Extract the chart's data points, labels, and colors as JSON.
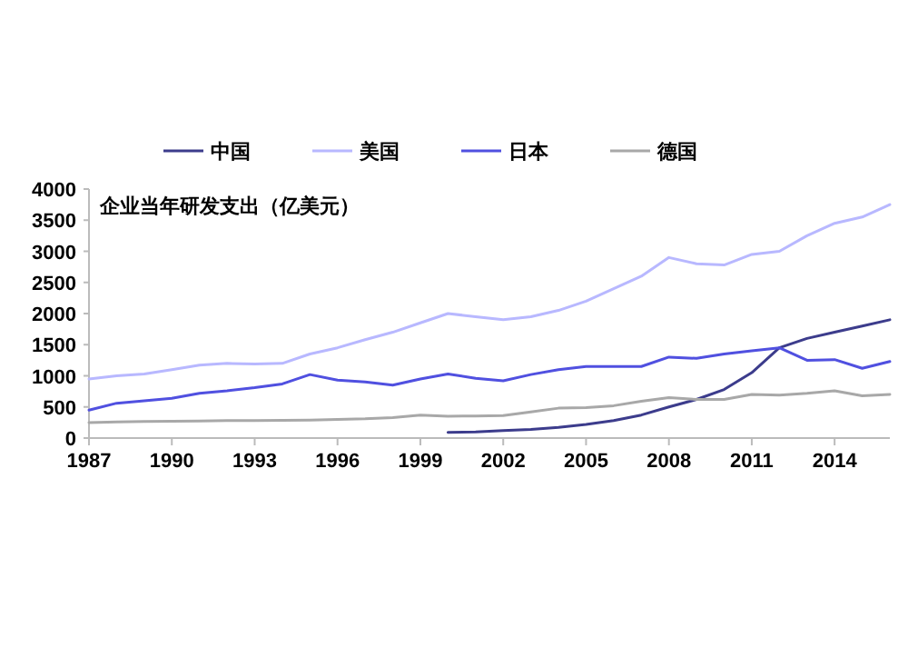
{
  "chart_data": {
    "type": "line",
    "ylabel": "企业当年研发支出（亿美元）",
    "x": [
      1987,
      1988,
      1989,
      1990,
      1991,
      1992,
      1993,
      1994,
      1995,
      1996,
      1997,
      1998,
      1999,
      2000,
      2001,
      2002,
      2003,
      2004,
      2005,
      2006,
      2007,
      2008,
      2009,
      2010,
      2011,
      2012,
      2013,
      2014,
      2015,
      2016
    ],
    "series": [
      {
        "name": "中国",
        "color": "#3c3c8c",
        "values": [
          null,
          null,
          null,
          null,
          null,
          null,
          null,
          null,
          null,
          null,
          null,
          null,
          null,
          90,
          100,
          120,
          140,
          170,
          220,
          280,
          370,
          500,
          620,
          780,
          1050,
          1450,
          1600,
          1700,
          1800,
          1900
        ]
      },
      {
        "name": "美国",
        "color": "#b8b8ff",
        "values": [
          950,
          1000,
          1030,
          1100,
          1170,
          1200,
          1190,
          1200,
          1350,
          1450,
          1580,
          1700,
          1850,
          2000,
          1950,
          1900,
          1950,
          2050,
          2200,
          2400,
          2600,
          2900,
          2800,
          2780,
          2950,
          3000,
          3250,
          3450,
          3550,
          3750
        ]
      },
      {
        "name": "日本",
        "color": "#5050e0",
        "values": [
          450,
          560,
          600,
          640,
          720,
          760,
          810,
          870,
          1020,
          930,
          900,
          850,
          950,
          1030,
          960,
          920,
          1020,
          1100,
          1150,
          1150,
          1150,
          1300,
          1280,
          1350,
          1400,
          1450,
          1250,
          1260,
          1120,
          1230
        ]
      },
      {
        "name": "德国",
        "color": "#a8a8a8",
        "values": [
          250,
          260,
          265,
          270,
          275,
          280,
          280,
          285,
          290,
          300,
          310,
          330,
          370,
          350,
          355,
          360,
          420,
          480,
          490,
          520,
          590,
          650,
          620,
          620,
          700,
          690,
          720,
          760,
          680,
          700
        ]
      }
    ],
    "xlim": [
      1987,
      2016
    ],
    "xticks": [
      1987,
      1990,
      1993,
      1996,
      1999,
      2002,
      2005,
      2008,
      2011,
      2014
    ],
    "ylim": [
      0,
      4000
    ],
    "yticks": [
      0,
      500,
      1000,
      1500,
      2000,
      2500,
      3000,
      3500,
      4000
    ],
    "grid": false,
    "legend": "top",
    "marker": "none",
    "line_style": "solid"
  }
}
